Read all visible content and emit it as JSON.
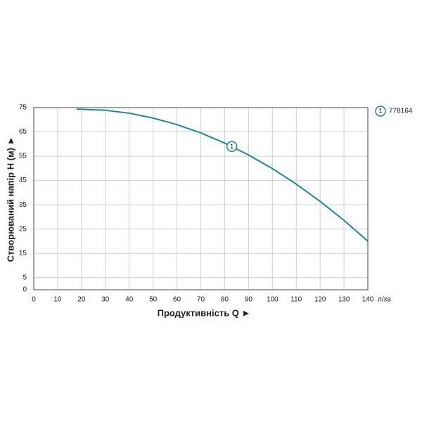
{
  "chart_data": {
    "type": "line",
    "x_label": "Продуктивність  Q ►",
    "x_unit": "л/хв",
    "y_label": "Створюваний напір Н (м) ►",
    "x": [
      18,
      30,
      40,
      50,
      60,
      70,
      80,
      90,
      100,
      110,
      120,
      130,
      140
    ],
    "series": [
      {
        "name": "778164",
        "color": "#1a8a9a",
        "values": [
          74.4,
          73.9,
          72.7,
          70.7,
          68.0,
          64.6,
          60.4,
          55.5,
          49.9,
          43.5,
          36.4,
          28.6,
          20.0
        ]
      }
    ],
    "annotation": {
      "label": "1",
      "x": 83,
      "y": 59
    },
    "xlim": [
      0,
      140
    ],
    "xticks": [
      0,
      10,
      20,
      30,
      40,
      50,
      60,
      70,
      80,
      90,
      100,
      110,
      120,
      130,
      140
    ],
    "ylim": [
      0,
      75
    ],
    "yticks": [
      0,
      5,
      15,
      25,
      35,
      45,
      55,
      65,
      75
    ],
    "grid": true
  }
}
